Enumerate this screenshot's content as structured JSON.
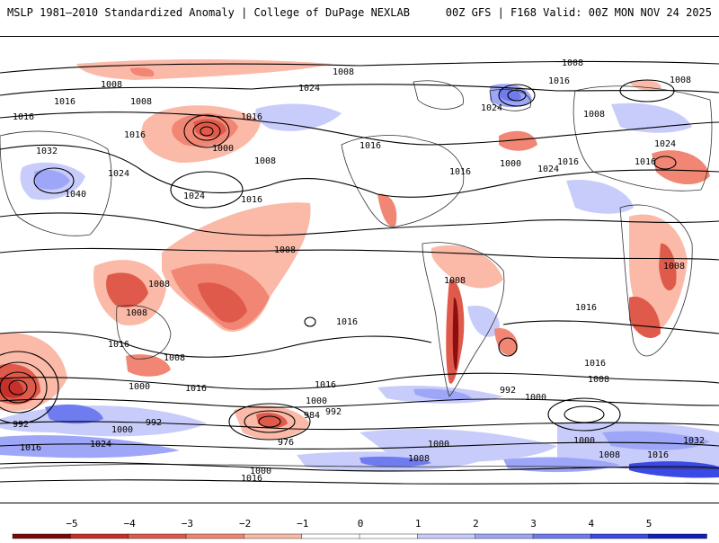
{
  "header": {
    "left_title": "MSLP 1981–2010 Standardized Anomaly | College of DuPage NEXLAB",
    "right_title": "00Z GFS | F168 Valid: 00Z MON NOV 24 2025"
  },
  "map": {
    "contour_labels": [
      "1008",
      "1008",
      "1024",
      "1016",
      "1008",
      "1016",
      "1016",
      "1016",
      "1000",
      "1032",
      "1024",
      "1040",
      "1024",
      "1016",
      "1008",
      "1024",
      "1016",
      "1016",
      "1008",
      "1008",
      "1016",
      "1008",
      "1008",
      "1008",
      "1016",
      "1000",
      "1008",
      "1016",
      "1016",
      "1008",
      "1000",
      "992",
      "1000",
      "984",
      "992",
      "1016",
      "976",
      "1000",
      "992",
      "1000",
      "992",
      "1016",
      "1024",
      "1000",
      "1008",
      "1016",
      "1032",
      "1000",
      "1008",
      "1016",
      "1008",
      "1016",
      "1016",
      "1008",
      "1024",
      "1016",
      "1016",
      "1024",
      "1008",
      "1000"
    ],
    "colors": {
      "neg1": "#fbb9a8",
      "neg2": "#f08673",
      "neg3": "#e05a4b",
      "neg4": "#c6302a",
      "neg5": "#8b0f0f",
      "pos1": "#c8ccfb",
      "pos2": "#9ea6f7",
      "pos3": "#6f7cf0",
      "pos4": "#3b49e6",
      "pos5": "#0f1fb8"
    }
  },
  "colorbar": {
    "ticks": [
      "−5",
      "−4",
      "−3",
      "−2",
      "−1",
      "0",
      "1",
      "2",
      "3",
      "4",
      "5"
    ],
    "colors": [
      "#7a0a0a",
      "#c6302a",
      "#e05a4b",
      "#f08673",
      "#fbb9a8",
      "#ffffff",
      "#ffffff",
      "#c8ccfb",
      "#9ea6f7",
      "#6f7cf0",
      "#3b49e6",
      "#0f1fb8"
    ]
  }
}
